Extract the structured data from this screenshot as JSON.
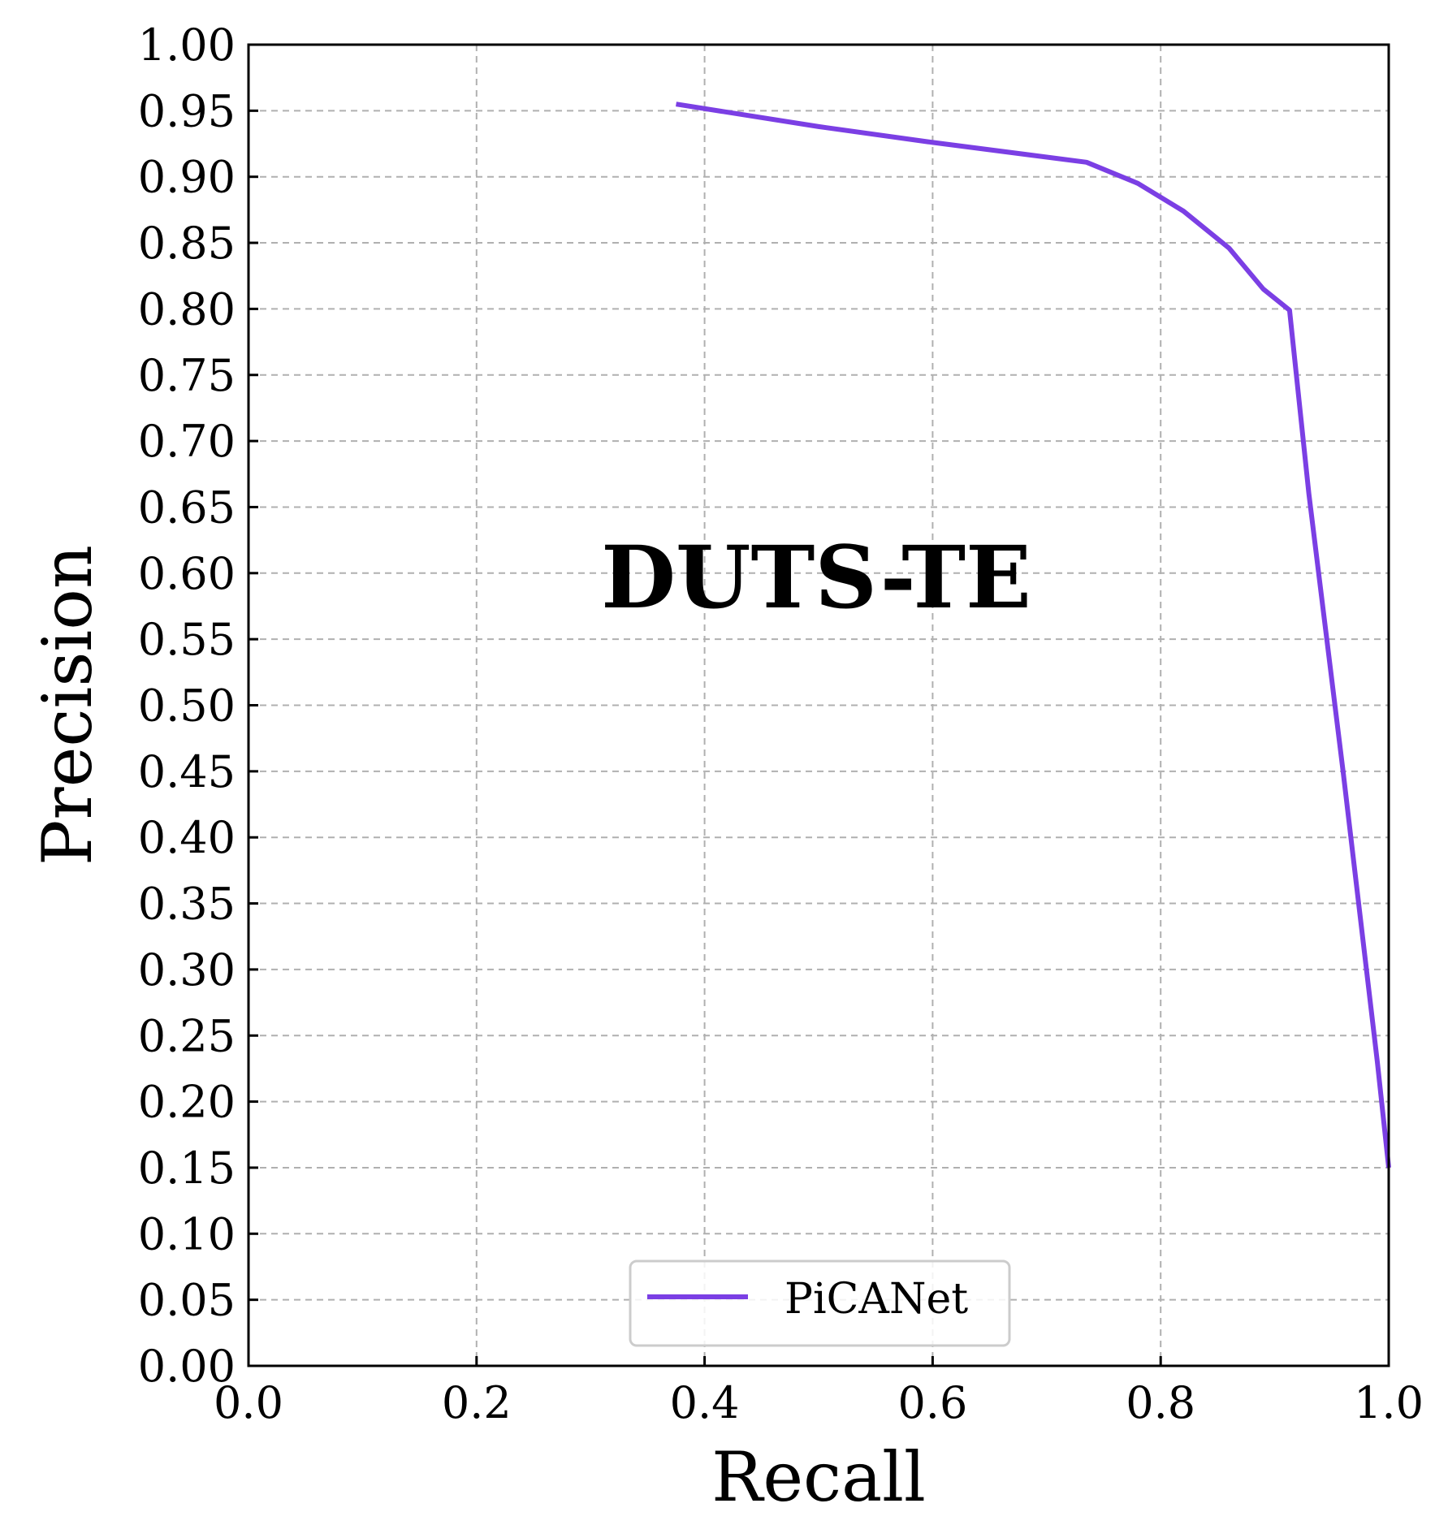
{
  "chart_data": {
    "type": "line",
    "xlabel": "Recall",
    "ylabel": "Precision",
    "annotation": "DUTS-TE",
    "xlim": [
      0.0,
      1.0
    ],
    "ylim": [
      0.0,
      1.0
    ],
    "xticks": [
      "0.0",
      "0.2",
      "0.4",
      "0.6",
      "0.8",
      "1.0"
    ],
    "yticks": [
      "0.00",
      "0.05",
      "0.10",
      "0.15",
      "0.20",
      "0.25",
      "0.30",
      "0.35",
      "0.40",
      "0.45",
      "0.50",
      "0.55",
      "0.60",
      "0.65",
      "0.70",
      "0.75",
      "0.80",
      "0.85",
      "0.90",
      "0.95",
      "1.00"
    ],
    "grid": true,
    "legend_position": "bottom-center",
    "series": [
      {
        "name": "PiCANet",
        "color": "#7b3fe4",
        "x": [
          0.375,
          0.5,
          0.6,
          0.735,
          0.78,
          0.82,
          0.86,
          0.89,
          0.913,
          0.93,
          0.96,
          0.99,
          1.0
        ],
        "y": [
          0.955,
          0.938,
          0.926,
          0.911,
          0.895,
          0.874,
          0.846,
          0.815,
          0.799,
          0.66,
          0.45,
          0.23,
          0.15
        ]
      }
    ]
  }
}
